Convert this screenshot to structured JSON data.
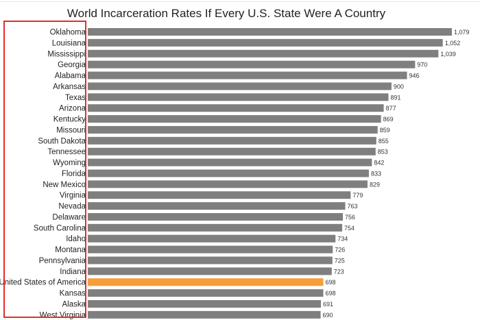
{
  "chart_data": {
    "type": "bar",
    "orientation": "horizontal",
    "title": "World Incarceration Rates If Every U.S. State Were A Country",
    "xlabel": "",
    "ylabel": "",
    "xlim": [
      0,
      1079
    ],
    "grid": false,
    "legend": "none",
    "colors": {
      "default": "#7f7f7f",
      "highlight": "#f79d3b",
      "annotation_box": "#e32b2b"
    },
    "highlight_category": "United States of America",
    "categories": [
      "Oklahoma",
      "Louisiana",
      "Mississippi",
      "Georgia",
      "Alabama",
      "Arkansas",
      "Texas",
      "Arizona",
      "Kentucky",
      "Missouri",
      "South Dakota",
      "Tennessee",
      "Wyoming",
      "Florida",
      "New Mexico",
      "Virginia",
      "Nevada",
      "Delaware",
      "South Carolina",
      "Idaho",
      "Montana",
      "Pennsylvania",
      "Indiana",
      "United States of America",
      "Kansas",
      "Alaska",
      "West Virginia"
    ],
    "values": [
      1079,
      1052,
      1039,
      970,
      946,
      900,
      891,
      877,
      869,
      859,
      855,
      853,
      842,
      833,
      829,
      779,
      763,
      756,
      754,
      734,
      726,
      725,
      723,
      698,
      698,
      691,
      690
    ],
    "value_labels": [
      "1,079",
      "1,052",
      "1,039",
      "970",
      "946",
      "900",
      "891",
      "877",
      "869",
      "859",
      "855",
      "853",
      "842",
      "833",
      "829",
      "779",
      "763",
      "756",
      "754",
      "734",
      "726",
      "725",
      "723",
      "698",
      "698",
      "691",
      "690"
    ]
  }
}
